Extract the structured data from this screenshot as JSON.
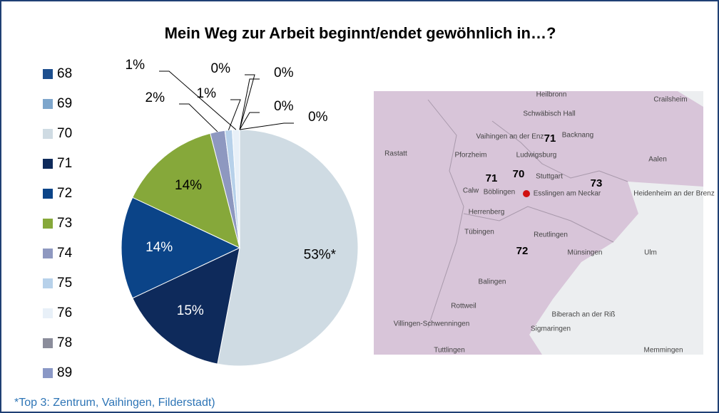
{
  "chart_data": {
    "type": "pie",
    "title": "Mein Weg zur Arbeit beginnt/endet gewöhnlich in…?",
    "categories": [
      "68",
      "69",
      "70",
      "71",
      "72",
      "73",
      "74",
      "75",
      "76",
      "78",
      "89"
    ],
    "values": [
      0,
      0,
      53,
      15,
      14,
      14,
      2,
      1,
      1,
      0,
      0
    ],
    "value_labels": [
      "0%",
      "0%",
      "53%*",
      "15%",
      "14%",
      "14%",
      "2%",
      "1%",
      "1%",
      "0%",
      "0%"
    ],
    "colors": [
      "#1d4f8e",
      "#7ea6cc",
      "#cfdbe3",
      "#0e2a5b",
      "#0b4488",
      "#86a83a",
      "#8e98c0",
      "#b7d1ea",
      "#e8f0f8",
      "#8b8d9b",
      "#8a98c6"
    ],
    "legend": "left",
    "footnote": "*Top 3: Zentrum, Vaihingen, Filderstadt)"
  },
  "map": {
    "region_labels": [
      "71",
      "70",
      "71",
      "73",
      "72"
    ],
    "place_labels": [
      "Heilbronn",
      "Schwäbisch Hall",
      "Backnang",
      "Crailsheim",
      "Vaihingen an der Enz",
      "Pforzheim",
      "Ludwigsburg",
      "Rastatt",
      "Stuttgart",
      "Aalen",
      "Calw",
      "Böblingen",
      "Esslingen am Neckar",
      "Heidenheim an der Brenz",
      "Herrenberg",
      "Tübingen",
      "Reutlingen",
      "Münsingen",
      "Ulm",
      "Balingen",
      "Rottweil",
      "Villingen-Schwenningen",
      "Sigmaringen",
      "Biberach an der Riß",
      "Tuttlingen",
      "Memmingen"
    ]
  }
}
